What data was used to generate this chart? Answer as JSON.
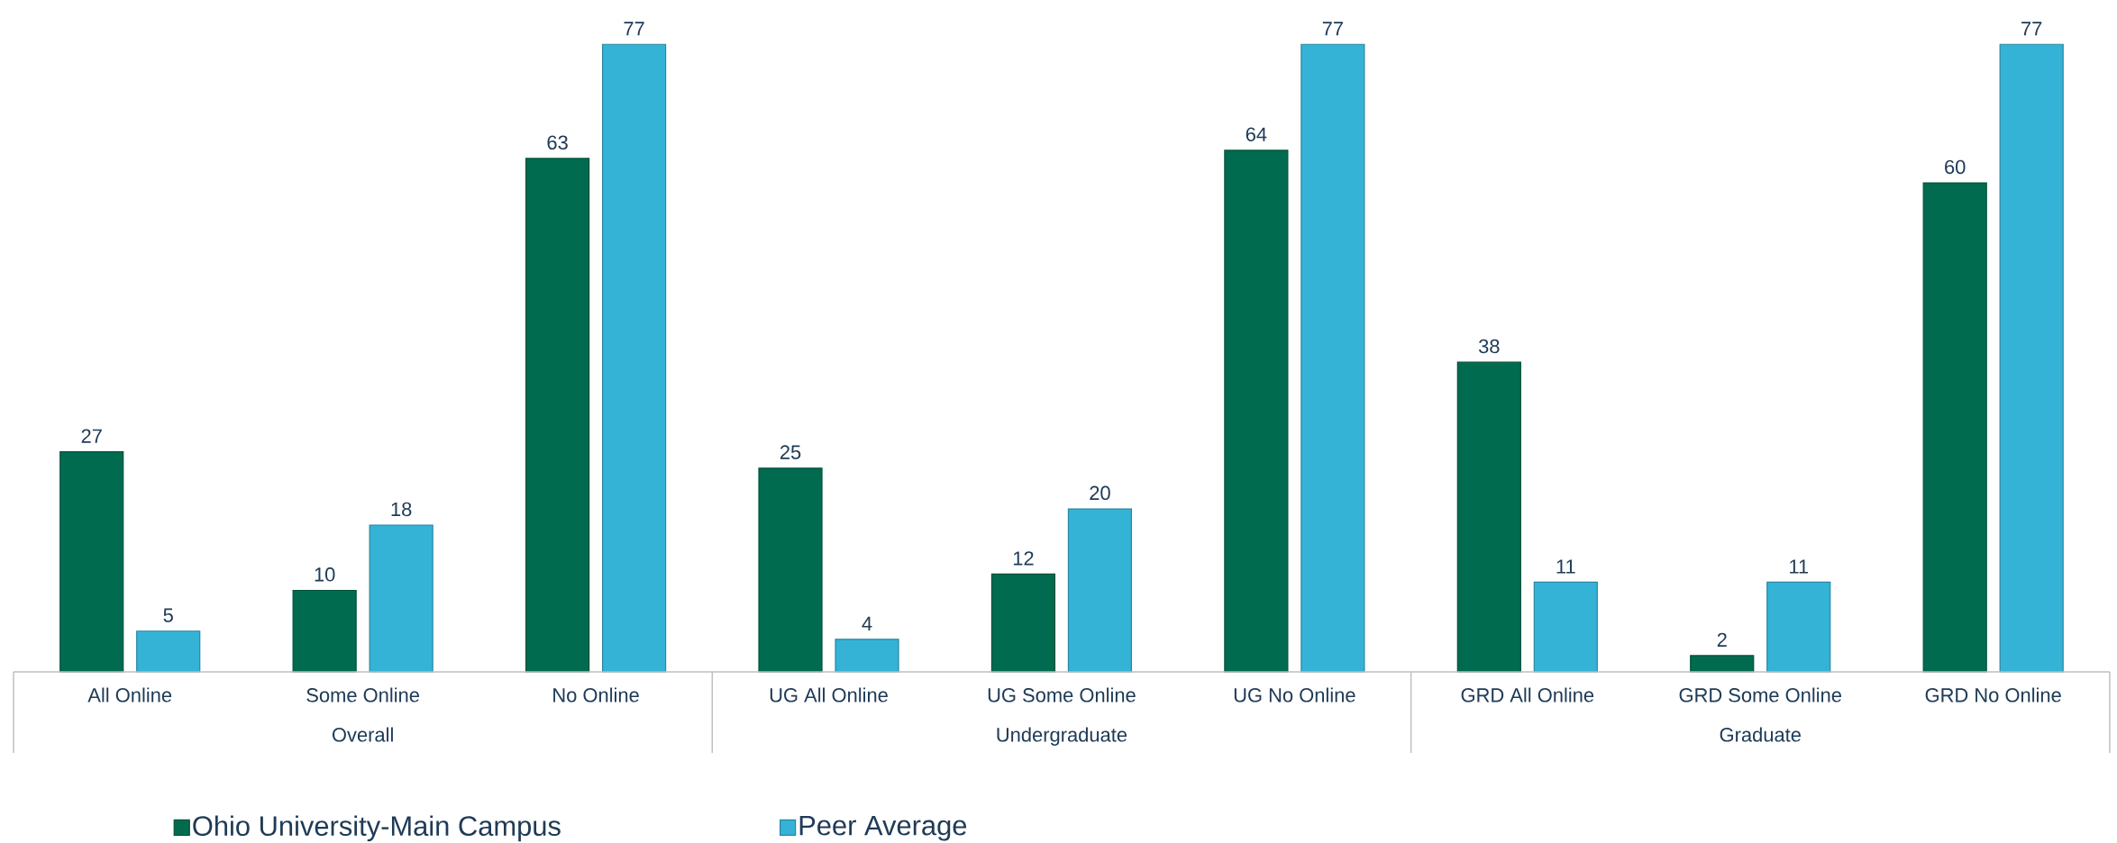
{
  "chart_data": {
    "type": "bar",
    "categories": [
      "All Online",
      "Some Online",
      "No Online",
      "UG All Online",
      "UG Some Online",
      "UG No Online",
      "GRD All Online",
      "GRD Some Online",
      "GRD No Online"
    ],
    "series": [
      {
        "name": "Ohio University-Main Campus",
        "color": "#006b4f",
        "values": [
          27,
          10,
          63,
          25,
          12,
          64,
          38,
          2,
          60
        ]
      },
      {
        "name": "Peer Average",
        "color": "#35b3d7",
        "values": [
          5,
          18,
          77,
          4,
          20,
          77,
          11,
          11,
          77
        ]
      }
    ],
    "annotations": [
      "Overall",
      "Undergraduate",
      "Graduate"
    ],
    "data_labels": true,
    "legend": "bottom"
  }
}
